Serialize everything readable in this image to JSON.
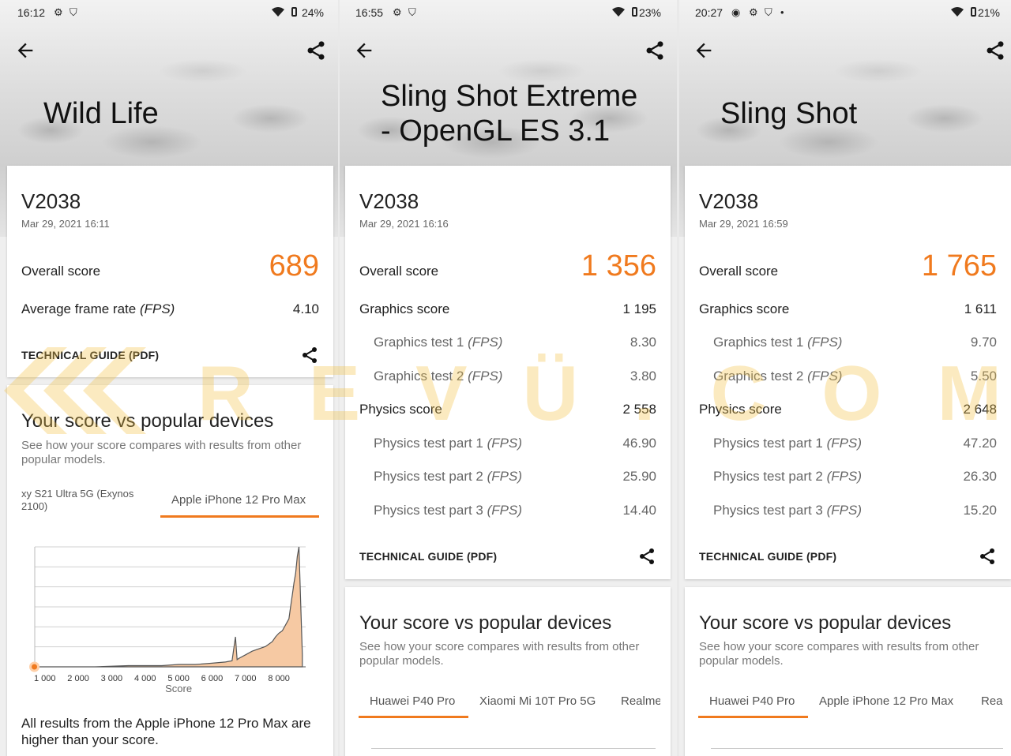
{
  "panels": [
    {
      "status": {
        "time": "16:12",
        "battery": "24%"
      },
      "title": "Wild Life",
      "device": "V2038",
      "date": "Mar 29, 2021 16:11",
      "overall_label": "Overall score",
      "overall_value": "689",
      "fps_label": "Average frame rate",
      "fps_unit": "(FPS)",
      "fps_value": "4.10",
      "guide": "TECHNICAL GUIDE (PDF)",
      "vs_title": "Your score vs popular devices",
      "vs_desc": "See how your score compares with results from other popular models.",
      "tabs": [
        "xy S21 Ultra 5G (Exynos 2100)",
        "Apple iPhone 12 Pro Max"
      ],
      "footer": "All results from the Apple iPhone 12 Pro Max are higher than your score."
    },
    {
      "status": {
        "time": "16:55",
        "battery": "23%"
      },
      "title": "Sling Shot Extreme\n- OpenGL ES 3.1",
      "device": "V2038",
      "date": "Mar 29, 2021 16:16",
      "overall_label": "Overall score",
      "overall_value": "1 356",
      "graphics_label": "Graphics score",
      "graphics_value": "1 195",
      "gt1_label": "Graphics test 1",
      "gt1_value": "8.30",
      "gt2_label": "Graphics test 2",
      "gt2_value": "3.80",
      "physics_label": "Physics score",
      "physics_value": "2 558",
      "pt1_label": "Physics test part 1",
      "pt1_value": "46.90",
      "pt2_label": "Physics test part 2",
      "pt2_value": "25.90",
      "pt3_label": "Physics test part 3",
      "pt3_value": "14.40",
      "fps_unit": "(FPS)",
      "guide": "TECHNICAL GUIDE (PDF)",
      "vs_title": "Your score vs popular devices",
      "vs_desc": "See how your score compares with results from other popular models.",
      "tabs": [
        "Huawei P40 Pro",
        "Xiaomi Mi 10T Pro 5G",
        "Realme"
      ]
    },
    {
      "status": {
        "time": "20:27",
        "battery": "21%"
      },
      "title": "Sling Shot",
      "device": "V2038",
      "date": "Mar 29, 2021 16:59",
      "overall_label": "Overall score",
      "overall_value": "1 765",
      "graphics_label": "Graphics score",
      "graphics_value": "1 611",
      "gt1_label": "Graphics test 1",
      "gt1_value": "9.70",
      "gt2_label": "Graphics test 2",
      "gt2_value": "5.50",
      "physics_label": "Physics score",
      "physics_value": "2 648",
      "pt1_label": "Physics test part 1",
      "pt1_value": "47.20",
      "pt2_label": "Physics test part 2",
      "pt2_value": "26.30",
      "pt3_label": "Physics test part 3",
      "pt3_value": "15.20",
      "fps_unit": "(FPS)",
      "guide": "TECHNICAL GUIDE (PDF)",
      "vs_title": "Your score vs popular devices",
      "vs_desc": "See how your score compares with results from other popular models.",
      "tabs": [
        "Huawei P40 Pro",
        "Apple iPhone 12 Pro Max",
        "Rea"
      ]
    }
  ],
  "watermark": "REVÜ.COM.PH",
  "colors": {
    "accent": "#f07a1e",
    "watermark": "#f5c242"
  },
  "chart_data": {
    "type": "area",
    "xlabel": "Score",
    "ylabel": "",
    "xticks": [
      "1 000",
      "2 000",
      "3 000",
      "4 000",
      "5 000",
      "6 000",
      "7 000",
      "8 000"
    ],
    "xlim": [
      700,
      8800
    ],
    "ylim": [
      0,
      100
    ],
    "marker_x": 689,
    "x": [
      700,
      1500,
      2500,
      3500,
      4500,
      5000,
      5500,
      6000,
      6400,
      6600,
      6700,
      6750,
      6800,
      7000,
      7200,
      7400,
      7600,
      7800,
      7900,
      8000,
      8100,
      8200,
      8300,
      8350,
      8400,
      8450,
      8500,
      8550,
      8600,
      8650,
      8700
    ],
    "y": [
      0,
      0,
      0,
      1,
      1,
      2,
      2,
      3,
      4,
      5,
      25,
      6,
      7,
      10,
      13,
      15,
      17,
      21,
      25,
      28,
      30,
      35,
      40,
      50,
      60,
      70,
      78,
      92,
      100,
      55,
      10
    ]
  }
}
